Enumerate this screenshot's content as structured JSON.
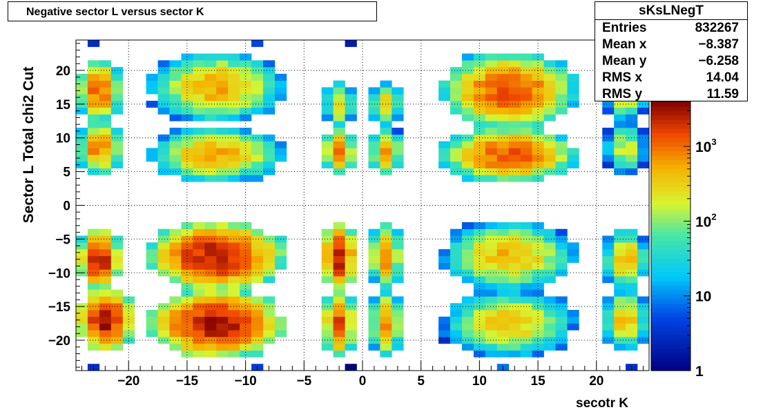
{
  "title": "Negative sector L versus sector K",
  "stats": {
    "name": "sKsLNegT",
    "rows": [
      {
        "label": "Entries",
        "value": "832267"
      },
      {
        "label": "Mean x",
        "value": "−8.387"
      },
      {
        "label": "Mean y",
        "value": "−6.258"
      },
      {
        "label": "RMS x",
        "value": "14.04"
      },
      {
        "label": "RMS y",
        "value": "11.59"
      }
    ]
  },
  "chart_data": {
    "type": "heatmap",
    "title": "Negative sector L versus sector K",
    "xlabel": "secotr K",
    "ylabel": "Sector L   Total chi2 Cut",
    "xlim": [
      -24.5,
      24.5
    ],
    "ylim": [
      -24.5,
      24.5
    ],
    "xticks": [
      -20,
      -15,
      -10,
      -5,
      0,
      5,
      10,
      15,
      20
    ],
    "xtick_labels": [
      "−20",
      "−15",
      "−10",
      "−5",
      "0",
      "5",
      "10",
      "15",
      "20"
    ],
    "yticks": [
      -20,
      -15,
      -10,
      -5,
      0,
      5,
      10,
      15,
      20
    ],
    "ytick_labels": [
      "−20",
      "−15",
      "−10",
      "−5",
      "0",
      "5",
      "10",
      "15",
      "20"
    ],
    "grid": true,
    "z_scale": "log",
    "z_range": [
      1,
      4000
    ],
    "colorbar_ticks": [
      1,
      10,
      100,
      1000
    ],
    "colorbar_labels": [
      "1",
      "10",
      "10",
      "10"
    ],
    "colorbar_exponents": [
      "",
      "",
      "2",
      "3"
    ],
    "clusters": [
      {
        "x": [
          -24,
          -21
        ],
        "y": [
          13,
          21
        ],
        "peak": 1200
      },
      {
        "x": [
          -24,
          -21
        ],
        "y": [
          5,
          12
        ],
        "peak": 900
      },
      {
        "x": [
          -24,
          -21
        ],
        "y": [
          -12,
          -4
        ],
        "peak": 2500
      },
      {
        "x": [
          -24,
          -20
        ],
        "y": [
          -21,
          -13
        ],
        "peak": 3500
      },
      {
        "x": [
          -18,
          -7
        ],
        "y": [
          13,
          22
        ],
        "peak": 600
      },
      {
        "x": [
          -18,
          -7
        ],
        "y": [
          4,
          11
        ],
        "peak": 600
      },
      {
        "x": [
          -18,
          -7
        ],
        "y": [
          -12,
          -3
        ],
        "peak": 3000
      },
      {
        "x": [
          -18,
          -7
        ],
        "y": [
          -22,
          -13
        ],
        "peak": 3000
      },
      {
        "x": [
          -3,
          -1
        ],
        "y": [
          12,
          18
        ],
        "peak": 300
      },
      {
        "x": [
          1,
          3
        ],
        "y": [
          12,
          18
        ],
        "peak": 300
      },
      {
        "x": [
          -3,
          -1
        ],
        "y": [
          5,
          11
        ],
        "peak": 900
      },
      {
        "x": [
          1,
          3
        ],
        "y": [
          5,
          11
        ],
        "peak": 700
      },
      {
        "x": [
          -3,
          -1
        ],
        "y": [
          -12,
          -3
        ],
        "peak": 3000
      },
      {
        "x": [
          1,
          3
        ],
        "y": [
          -12,
          -3
        ],
        "peak": 800
      },
      {
        "x": [
          -3,
          -1
        ],
        "y": [
          -22,
          -13
        ],
        "peak": 1500
      },
      {
        "x": [
          1,
          3
        ],
        "y": [
          -22,
          -13
        ],
        "peak": 700
      },
      {
        "x": [
          7,
          18
        ],
        "y": [
          12,
          22
        ],
        "peak": 1500
      },
      {
        "x": [
          7,
          18
        ],
        "y": [
          4,
          11
        ],
        "peak": 1500
      },
      {
        "x": [
          7,
          18
        ],
        "y": [
          -12,
          -3
        ],
        "peak": 500
      },
      {
        "x": [
          7,
          18
        ],
        "y": [
          -22,
          -13
        ],
        "peak": 400
      },
      {
        "x": [
          21,
          24
        ],
        "y": [
          13,
          20
        ],
        "peak": 300
      },
      {
        "x": [
          21,
          24
        ],
        "y": [
          5,
          12
        ],
        "peak": 200
      },
      {
        "x": [
          21,
          24
        ],
        "y": [
          -12,
          -4
        ],
        "peak": 500
      },
      {
        "x": [
          21,
          24
        ],
        "y": [
          -21,
          -13
        ],
        "peak": 500
      }
    ]
  }
}
